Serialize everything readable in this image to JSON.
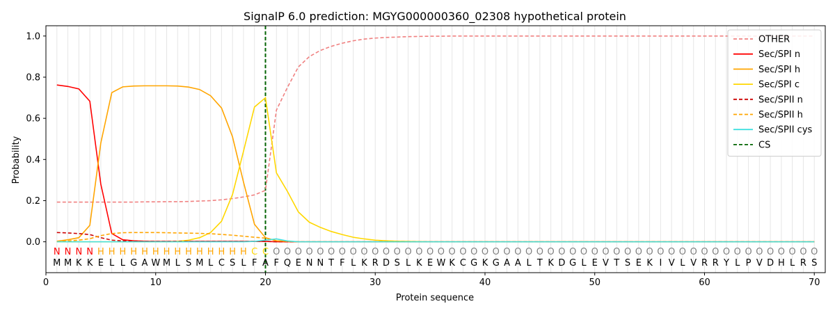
{
  "chart_data": {
    "type": "line",
    "title": "SignalP 6.0 prediction: MGYG000000360_02308 hypothetical protein",
    "xlabel": "Protein sequence",
    "ylabel": "Probability",
    "xlim": [
      0,
      71
    ],
    "ylim": [
      -0.15,
      1.05
    ],
    "xticks": [
      0,
      10,
      20,
      30,
      40,
      50,
      60,
      70
    ],
    "yticks": [
      "0.0",
      "0.2",
      "0.4",
      "0.6",
      "0.8",
      "1.0"
    ],
    "ytick_values": [
      0.0,
      0.2,
      0.4,
      0.6,
      0.8,
      1.0
    ],
    "grid": "vertical",
    "legend_position": "top-right",
    "sequence": [
      "M",
      "M",
      "K",
      "K",
      "E",
      "L",
      "L",
      "G",
      "A",
      "W",
      "M",
      "L",
      "S",
      "M",
      "L",
      "C",
      "S",
      "L",
      "F",
      "A",
      "F",
      "Q",
      "E",
      "N",
      "N",
      "T",
      "F",
      "L",
      "K",
      "R",
      "D",
      "S",
      "L",
      "K",
      "E",
      "W",
      "K",
      "C",
      "G",
      "K",
      "G",
      "A",
      "A",
      "L",
      "T",
      "K",
      "D",
      "G",
      "L",
      "E",
      "V",
      "T",
      "S",
      "E",
      "K",
      "I",
      "V",
      "L",
      "V",
      "R",
      "R",
      "Y",
      "L",
      "P",
      "V",
      "D",
      "H",
      "L",
      "R",
      "S"
    ],
    "labels": [
      "N",
      "N",
      "N",
      "N",
      "H",
      "H",
      "H",
      "H",
      "H",
      "H",
      "H",
      "H",
      "H",
      "H",
      "H",
      "H",
      "H",
      "H",
      "C",
      "C",
      "O",
      "O",
      "O",
      "O",
      "O",
      "O",
      "O",
      "O",
      "O",
      "O",
      "O",
      "O",
      "O",
      "O",
      "O",
      "O",
      "O",
      "O",
      "O",
      "O",
      "O",
      "O",
      "O",
      "O",
      "O",
      "O",
      "O",
      "O",
      "O",
      "O",
      "O",
      "O",
      "O",
      "O",
      "O",
      "O",
      "O",
      "O",
      "O",
      "O",
      "O",
      "O",
      "O",
      "O",
      "O",
      "O",
      "O",
      "O",
      "O",
      "O"
    ],
    "label_colors": {
      "N": "#ff0000",
      "H": "#ffa500",
      "C": "#ffd700",
      "O": "#808080"
    },
    "cleavage_site": 20,
    "series": [
      {
        "name": "OTHER",
        "color": "#f08080",
        "dash": "dashed",
        "values": [
          0.193,
          0.193,
          0.193,
          0.193,
          0.193,
          0.193,
          0.193,
          0.193,
          0.194,
          0.194,
          0.195,
          0.195,
          0.196,
          0.198,
          0.2,
          0.204,
          0.21,
          0.218,
          0.228,
          0.25,
          0.64,
          0.75,
          0.85,
          0.9,
          0.93,
          0.95,
          0.965,
          0.977,
          0.985,
          0.99,
          0.993,
          0.995,
          0.997,
          0.998,
          0.999,
          0.999,
          1,
          1,
          1,
          1,
          1,
          1,
          1,
          1,
          1,
          1,
          1,
          1,
          1,
          1,
          1,
          1,
          1,
          1,
          1,
          1,
          1,
          1,
          1,
          1,
          1,
          1,
          1,
          1,
          1,
          1,
          1,
          1,
          1,
          1
        ]
      },
      {
        "name": "Sec/SPI n",
        "color": "#ff0000",
        "dash": "solid",
        "values": [
          0.762,
          0.755,
          0.743,
          0.683,
          0.28,
          0.04,
          0.01,
          0.005,
          0.003,
          0.002,
          0.002,
          0.002,
          0.002,
          0.002,
          0.002,
          0.002,
          0.002,
          0.002,
          0.002,
          0.002,
          0,
          0,
          0,
          0,
          0,
          0,
          0,
          0,
          0,
          0,
          0,
          0,
          0,
          0,
          0,
          0,
          0,
          0,
          0,
          0,
          0,
          0,
          0,
          0,
          0,
          0,
          0,
          0,
          0,
          0,
          0,
          0,
          0,
          0,
          0,
          0,
          0,
          0,
          0,
          0,
          0,
          0,
          0,
          0,
          0,
          0,
          0,
          0,
          0,
          0
        ]
      },
      {
        "name": "Sec/SPI h",
        "color": "#ffa500",
        "dash": "solid",
        "values": [
          0.003,
          0.01,
          0.02,
          0.08,
          0.48,
          0.725,
          0.753,
          0.757,
          0.758,
          0.758,
          0.758,
          0.757,
          0.752,
          0.74,
          0.71,
          0.65,
          0.51,
          0.29,
          0.085,
          0.02,
          0.005,
          0.002,
          0,
          0,
          0,
          0,
          0,
          0,
          0,
          0,
          0,
          0,
          0,
          0,
          0,
          0,
          0,
          0,
          0,
          0,
          0,
          0,
          0,
          0,
          0,
          0,
          0,
          0,
          0,
          0,
          0,
          0,
          0,
          0,
          0,
          0,
          0,
          0,
          0,
          0,
          0,
          0,
          0,
          0,
          0,
          0,
          0,
          0,
          0,
          0
        ]
      },
      {
        "name": "Sec/SPI c",
        "color": "#ffd700",
        "dash": "solid",
        "values": [
          0,
          0,
          0,
          0,
          0,
          0,
          0,
          0,
          0,
          0,
          0,
          0.002,
          0.008,
          0.02,
          0.045,
          0.1,
          0.23,
          0.44,
          0.655,
          0.7,
          0.335,
          0.245,
          0.145,
          0.095,
          0.07,
          0.05,
          0.035,
          0.022,
          0.014,
          0.008,
          0.005,
          0.003,
          0.002,
          0.001,
          0,
          0,
          0,
          0,
          0,
          0,
          0,
          0,
          0,
          0,
          0,
          0,
          0,
          0,
          0,
          0,
          0,
          0,
          0,
          0,
          0,
          0,
          0,
          0,
          0,
          0,
          0,
          0,
          0,
          0,
          0,
          0,
          0,
          0,
          0,
          0
        ]
      },
      {
        "name": "Sec/SPII n",
        "color": "#cc0000",
        "dash": "dashed",
        "values": [
          0.045,
          0.043,
          0.04,
          0.035,
          0.02,
          0.008,
          0.004,
          0.003,
          0.002,
          0.002,
          0.002,
          0.002,
          0.002,
          0.002,
          0.002,
          0.002,
          0.002,
          0.002,
          0.002,
          0.002,
          0,
          0,
          0,
          0,
          0,
          0,
          0,
          0,
          0,
          0,
          0,
          0,
          0,
          0,
          0,
          0,
          0,
          0,
          0,
          0,
          0,
          0,
          0,
          0,
          0,
          0,
          0,
          0,
          0,
          0,
          0,
          0,
          0,
          0,
          0,
          0,
          0,
          0,
          0,
          0,
          0,
          0,
          0,
          0,
          0,
          0,
          0,
          0,
          0,
          0
        ]
      },
      {
        "name": "Sec/SPII h",
        "color": "#ffa500",
        "dash": "dashed",
        "values": [
          0.002,
          0.004,
          0.008,
          0.015,
          0.03,
          0.04,
          0.044,
          0.045,
          0.045,
          0.045,
          0.044,
          0.043,
          0.042,
          0.041,
          0.039,
          0.036,
          0.032,
          0.027,
          0.022,
          0.018,
          0.005,
          0.002,
          0,
          0,
          0,
          0,
          0,
          0,
          0,
          0,
          0,
          0,
          0,
          0,
          0,
          0,
          0,
          0,
          0,
          0,
          0,
          0,
          0,
          0,
          0,
          0,
          0,
          0,
          0,
          0,
          0,
          0,
          0,
          0,
          0,
          0,
          0,
          0,
          0,
          0,
          0,
          0,
          0,
          0,
          0,
          0,
          0,
          0,
          0,
          0
        ]
      },
      {
        "name": "Sec/SPII cys",
        "color": "#40e0e0",
        "dash": "solid",
        "values": [
          0,
          0,
          0,
          0,
          0,
          0,
          0,
          0,
          0,
          0,
          0,
          0,
          0,
          0,
          0,
          0,
          0,
          0,
          0.002,
          0.008,
          0.014,
          0.004,
          0,
          0,
          0,
          0,
          0,
          0,
          0,
          0,
          0,
          0,
          0,
          0,
          0,
          0,
          0,
          0,
          0,
          0,
          0,
          0,
          0,
          0,
          0,
          0,
          0,
          0,
          0,
          0,
          0,
          0,
          0,
          0,
          0,
          0,
          0,
          0,
          0,
          0,
          0,
          0,
          0,
          0,
          0,
          0,
          0,
          0,
          0,
          0
        ]
      }
    ],
    "cs_legend": {
      "name": "CS",
      "color": "#006400",
      "dash": "dashed"
    }
  }
}
